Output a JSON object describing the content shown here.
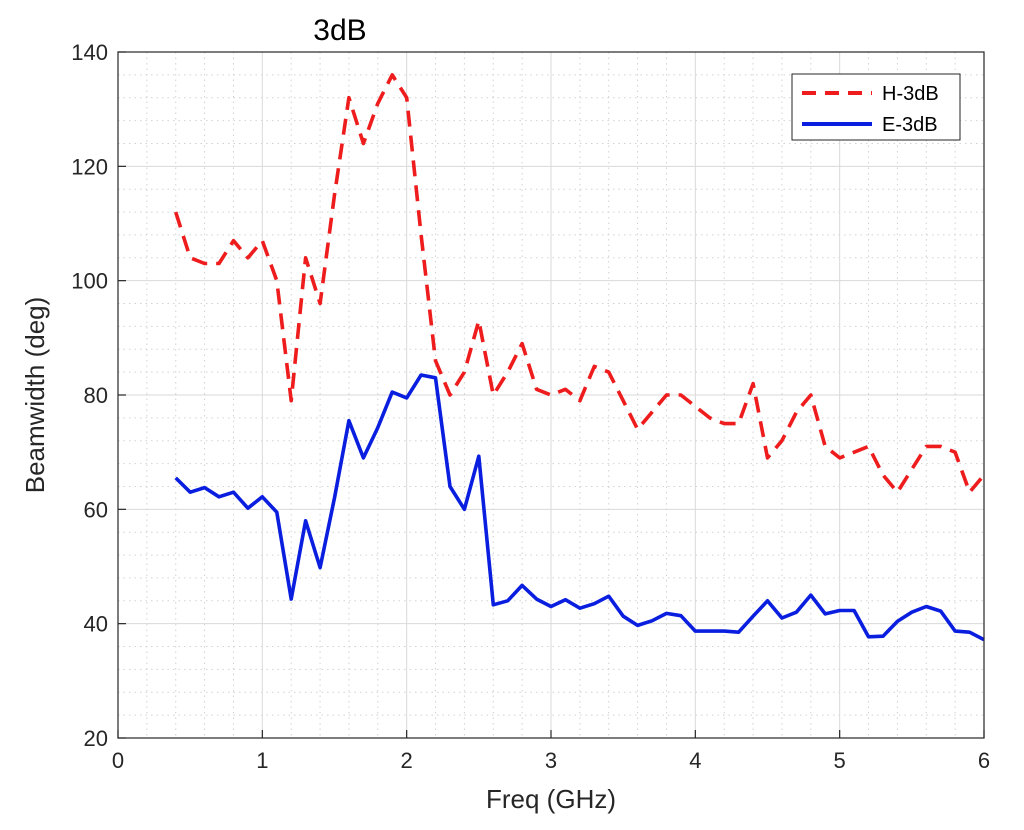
{
  "chart_data": {
    "type": "line",
    "title": "3dB",
    "xlabel": "Freq (GHz)",
    "ylabel": "Beamwidth (deg)",
    "xlim": [
      0,
      6
    ],
    "ylim": [
      20,
      140
    ],
    "xticks": [
      0,
      1,
      2,
      3,
      4,
      5,
      6
    ],
    "yticks": [
      20,
      40,
      60,
      80,
      100,
      120,
      140
    ],
    "grid": "major and minor",
    "legend_position": "top-right",
    "series": [
      {
        "name": "H-3dB",
        "color": "#ee1c1c",
        "style": "dashed",
        "x": [
          0.4,
          0.5,
          0.6,
          0.7,
          0.8,
          0.9,
          1.0,
          1.1,
          1.2,
          1.3,
          1.4,
          1.5,
          1.6,
          1.7,
          1.8,
          1.9,
          2.0,
          2.1,
          2.2,
          2.3,
          2.4,
          2.5,
          2.6,
          2.7,
          2.8,
          2.9,
          3.0,
          3.1,
          3.2,
          3.3,
          3.4,
          3.5,
          3.6,
          3.7,
          3.8,
          3.9,
          4.0,
          4.1,
          4.2,
          4.3,
          4.4,
          4.5,
          4.6,
          4.7,
          4.8,
          4.9,
          5.0,
          5.1,
          5.2,
          5.3,
          5.4,
          5.5,
          5.6,
          5.7,
          5.8,
          5.9,
          6.0
        ],
        "y": [
          112,
          104,
          103,
          103,
          107,
          104,
          107,
          100,
          79,
          104,
          96,
          115,
          132,
          124,
          131,
          136,
          132,
          108,
          86,
          80,
          84,
          93,
          80,
          84,
          89,
          81,
          80,
          81,
          79,
          85,
          84,
          79,
          74,
          77,
          80,
          80,
          78,
          76,
          75,
          75,
          82,
          69,
          72,
          77,
          80,
          71,
          69,
          70,
          71,
          66,
          63,
          67,
          71,
          71,
          70,
          63,
          66
        ]
      },
      {
        "name": "E-3dB",
        "color": "#0a1ee0",
        "style": "solid",
        "x": [
          0.4,
          0.5,
          0.6,
          0.7,
          0.8,
          0.9,
          1.0,
          1.1,
          1.2,
          1.3,
          1.4,
          1.5,
          1.6,
          1.7,
          1.8,
          1.9,
          2.0,
          2.1,
          2.2,
          2.3,
          2.4,
          2.5,
          2.6,
          2.7,
          2.8,
          2.9,
          3.0,
          3.1,
          3.2,
          3.3,
          3.4,
          3.5,
          3.6,
          3.7,
          3.8,
          3.9,
          4.0,
          4.1,
          4.2,
          4.3,
          4.4,
          4.5,
          4.6,
          4.7,
          4.8,
          4.9,
          5.0,
          5.1,
          5.2,
          5.3,
          5.4,
          5.5,
          5.6,
          5.7,
          5.8,
          5.9,
          6.0
        ],
        "y": [
          65.5,
          63,
          63.8,
          62.2,
          63,
          60.2,
          62.2,
          59.5,
          44.3,
          58,
          49.8,
          62,
          75.5,
          69,
          74.3,
          80.5,
          79.5,
          83.5,
          83,
          64,
          60,
          69.3,
          43.3,
          44,
          46.7,
          44.3,
          43,
          44.2,
          42.7,
          43.5,
          44.8,
          41.3,
          39.7,
          40.5,
          41.8,
          41.4,
          38.7,
          38.7,
          38.7,
          38.5,
          41.3,
          44,
          41,
          42,
          45,
          41.7,
          42.3,
          42.3,
          37.7,
          37.8,
          40.4,
          42,
          43,
          42.2,
          38.7,
          38.5,
          37.2
        ]
      }
    ]
  }
}
